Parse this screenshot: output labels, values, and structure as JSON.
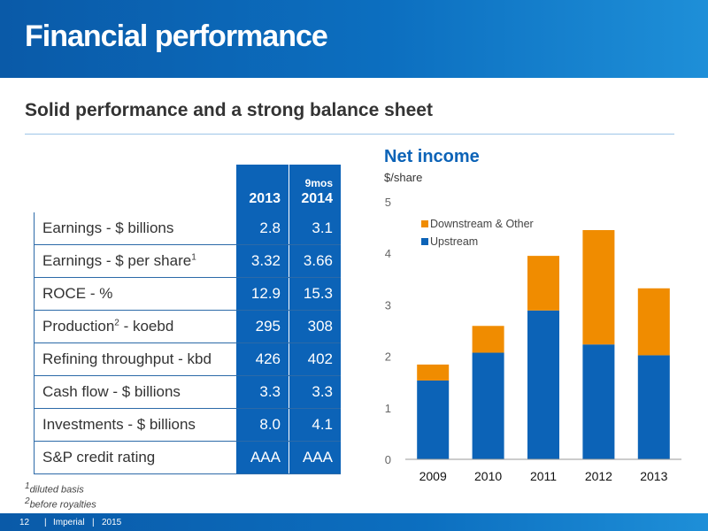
{
  "slide": {
    "title": "Financial performance",
    "subtitle": "Solid performance and a strong balance sheet"
  },
  "table": {
    "col1_header": "2013",
    "col2_header_note": "9mos",
    "col2_header": "2014",
    "rows": [
      {
        "label": "Earnings - $ billions",
        "sup": "",
        "suffix": "",
        "v2013": "2.8",
        "v2014": "3.1"
      },
      {
        "label": "Earnings - $ per share",
        "sup": "1",
        "suffix": "",
        "v2013": "3.32",
        "v2014": "3.66"
      },
      {
        "label": "ROCE - %",
        "sup": "",
        "suffix": "",
        "v2013": "12.9",
        "v2014": "15.3"
      },
      {
        "label": "Production",
        "sup": "2",
        "suffix": " - koebd",
        "v2013": "295",
        "v2014": "308"
      },
      {
        "label": "Refining throughput - kbd",
        "sup": "",
        "suffix": "",
        "v2013": "426",
        "v2014": "402"
      },
      {
        "label": "Cash flow - $ billions",
        "sup": "",
        "suffix": "",
        "v2013": "3.3",
        "v2014": "3.3"
      },
      {
        "label": "Investments - $ billions",
        "sup": "",
        "suffix": "",
        "v2013": "8.0",
        "v2014": "4.1"
      },
      {
        "label": "S&P credit rating",
        "sup": "",
        "suffix": "",
        "v2013": "AAA",
        "v2014": "AAA"
      }
    ]
  },
  "footnotes": {
    "f1_mark": "1",
    "f1_text": "diluted basis",
    "f2_mark": "2",
    "f2_text": "before royalties"
  },
  "footer": {
    "page": "12",
    "company": "Imperial",
    "year": "2015"
  },
  "colors": {
    "upstream": "#0c63b7",
    "downstream": "#f08c00",
    "header_blue": "#0c63b7"
  },
  "chart_data": {
    "type": "bar",
    "stacked": true,
    "title": "Net income",
    "ylabel": "$/share",
    "categories": [
      "2009",
      "2010",
      "2011",
      "2012",
      "2013"
    ],
    "series": [
      {
        "name": "Upstream",
        "values": [
          1.53,
          2.07,
          2.89,
          2.23,
          2.02
        ]
      },
      {
        "name": "Downstream & Other",
        "values": [
          0.31,
          0.52,
          1.06,
          2.22,
          1.3
        ]
      }
    ],
    "ylim": [
      0,
      5
    ],
    "yticks": [
      0,
      1,
      2,
      3,
      4,
      5
    ],
    "grid": false,
    "legend_position": "top-left"
  }
}
